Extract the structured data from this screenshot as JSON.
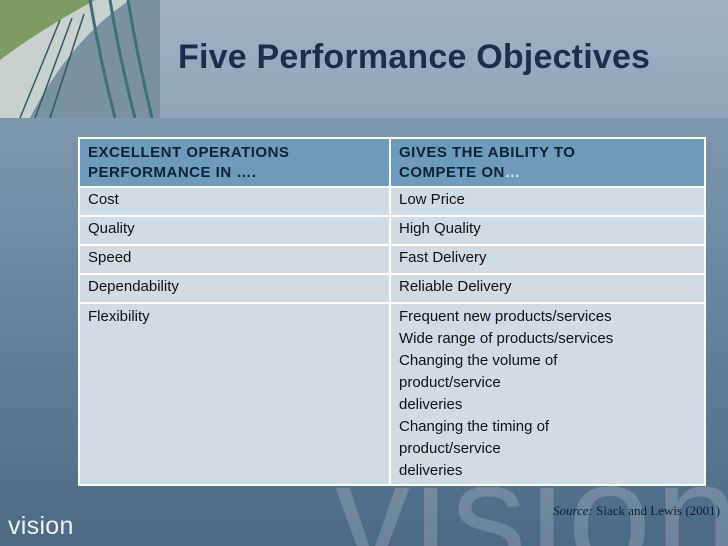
{
  "slide": {
    "title": "Five Performance Objectives",
    "brand": "vision",
    "watermark": "vision"
  },
  "table": {
    "headers": [
      {
        "text": "EXCELLENT OPERATIONS PERFORMANCE IN ….",
        "line1": "EXCELLENT OPERATIONS",
        "line2": "PERFORMANCE IN …."
      },
      {
        "line1": "GIVES THE ABILITY TO",
        "line2": "COMPETE ON",
        "ellipsis": "…"
      }
    ],
    "rows": [
      {
        "objective": "Cost",
        "ability": [
          "Low Price"
        ]
      },
      {
        "objective": "Quality",
        "ability": [
          "High Quality"
        ]
      },
      {
        "objective": "Speed",
        "ability": [
          "Fast Delivery"
        ]
      },
      {
        "objective": "Dependability",
        "ability": [
          "Reliable Delivery"
        ]
      },
      {
        "objective": "Flexibility",
        "ability": [
          "Frequent new products/services",
          "Wide range of products/services",
          "Changing the volume of",
          "product/service",
          "deliveries",
          "Changing the timing of",
          "product/service",
          "deliveries"
        ]
      }
    ]
  },
  "source": {
    "label": "Source:",
    "citation": "Slack and  Lewis (2001)"
  }
}
